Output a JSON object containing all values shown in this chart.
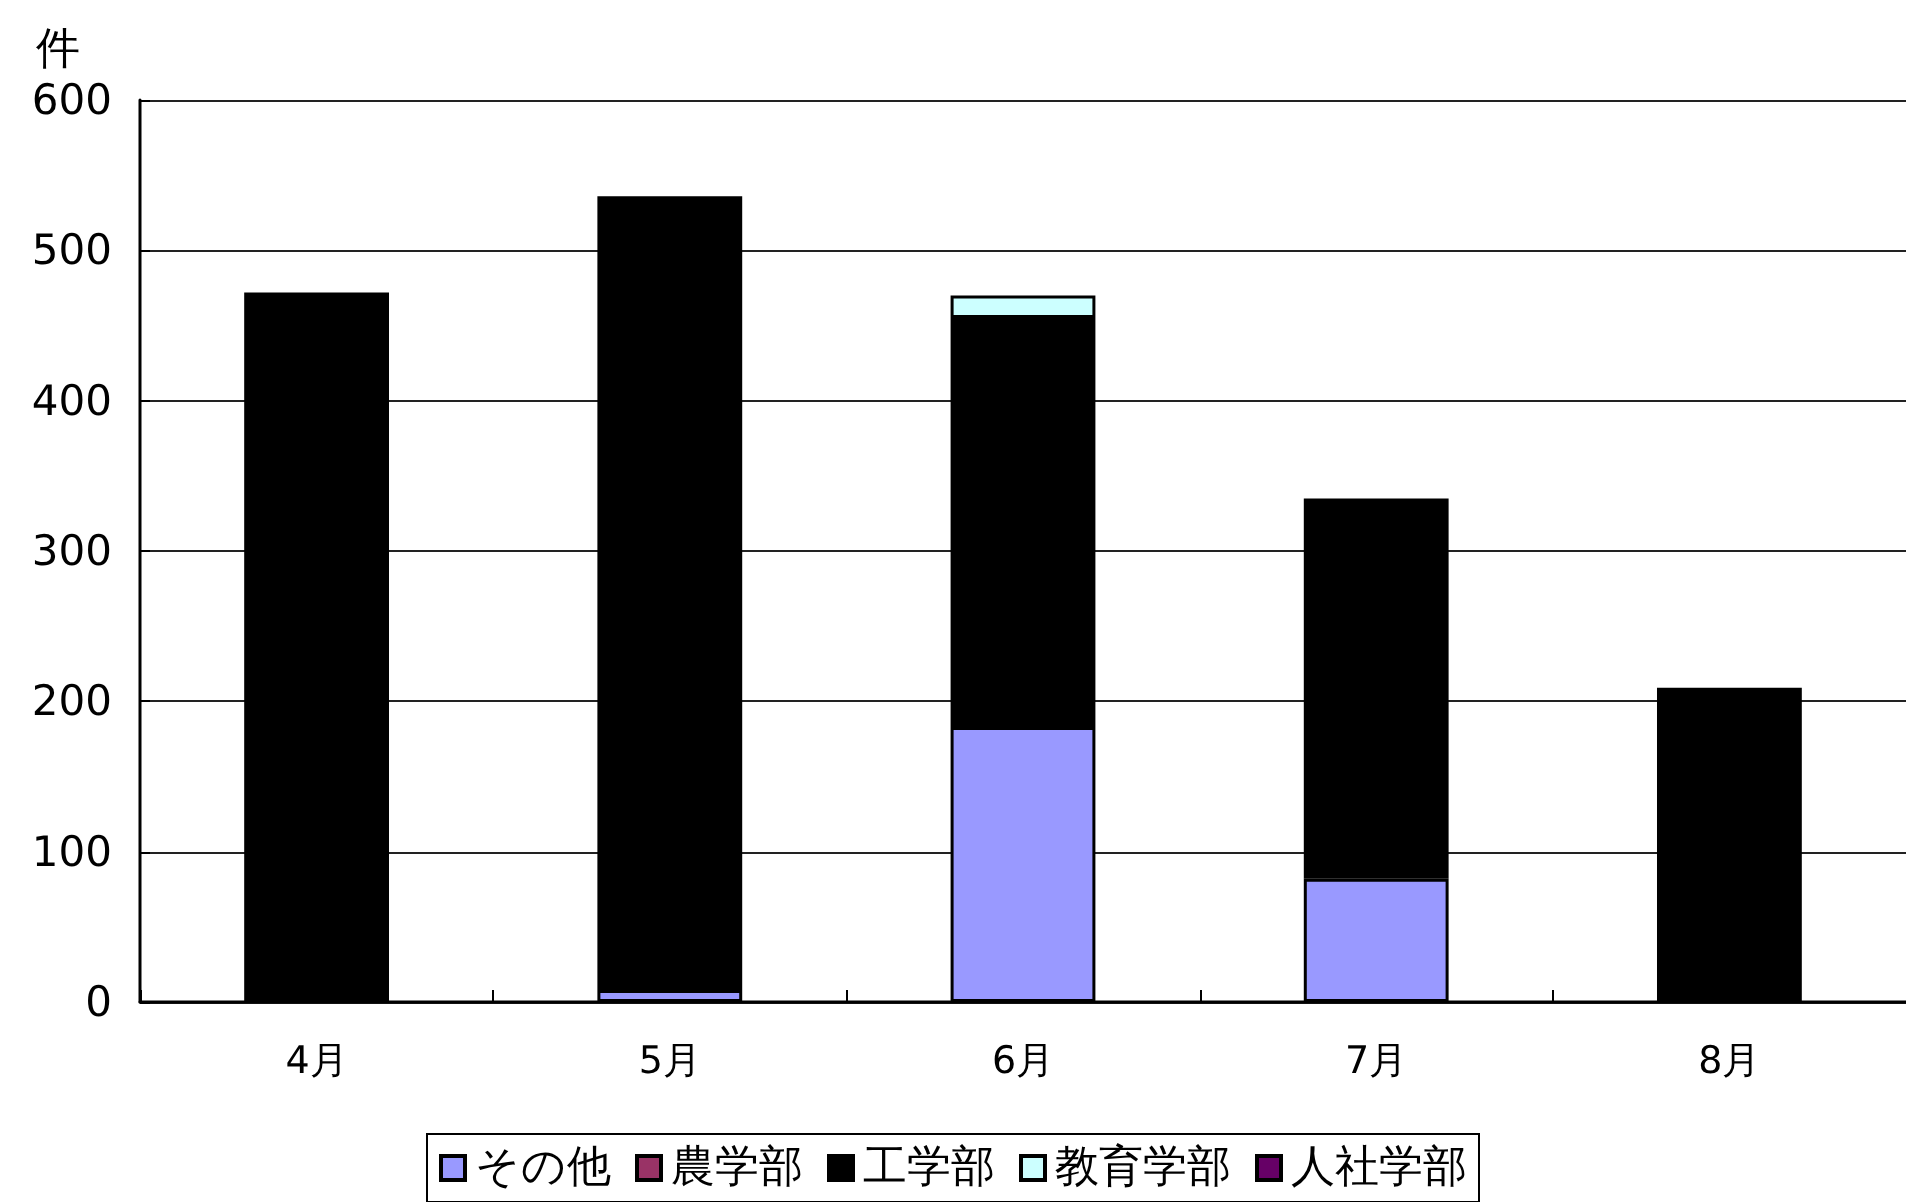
{
  "chart_data": {
    "type": "bar",
    "ylabel": "件",
    "categories": [
      "4月",
      "5月",
      "6月",
      "7月",
      "8月"
    ],
    "series": [
      {
        "name": "その他",
        "color": "#9999ff",
        "values": [
          0,
          8,
          183,
          82,
          0
        ]
      },
      {
        "name": "農学部",
        "color": "#993366",
        "values": [
          0,
          0,
          0,
          0,
          0
        ]
      },
      {
        "name": "工学部",
        "color": "#000000",
        "values": [
          472,
          528,
          272,
          253,
          209
        ]
      },
      {
        "name": "教育学部",
        "color": "#ccffff",
        "values": [
          0,
          0,
          15,
          0,
          0
        ]
      },
      {
        "name": "人社学部",
        "color": "#660066",
        "values": [
          0,
          0,
          0,
          0,
          0
        ]
      }
    ],
    "stacked": true,
    "ylim": [
      0,
      600
    ],
    "yticks": [
      0,
      100,
      200,
      300,
      400,
      500,
      600
    ],
    "grid": "y",
    "legend": "bottom"
  }
}
